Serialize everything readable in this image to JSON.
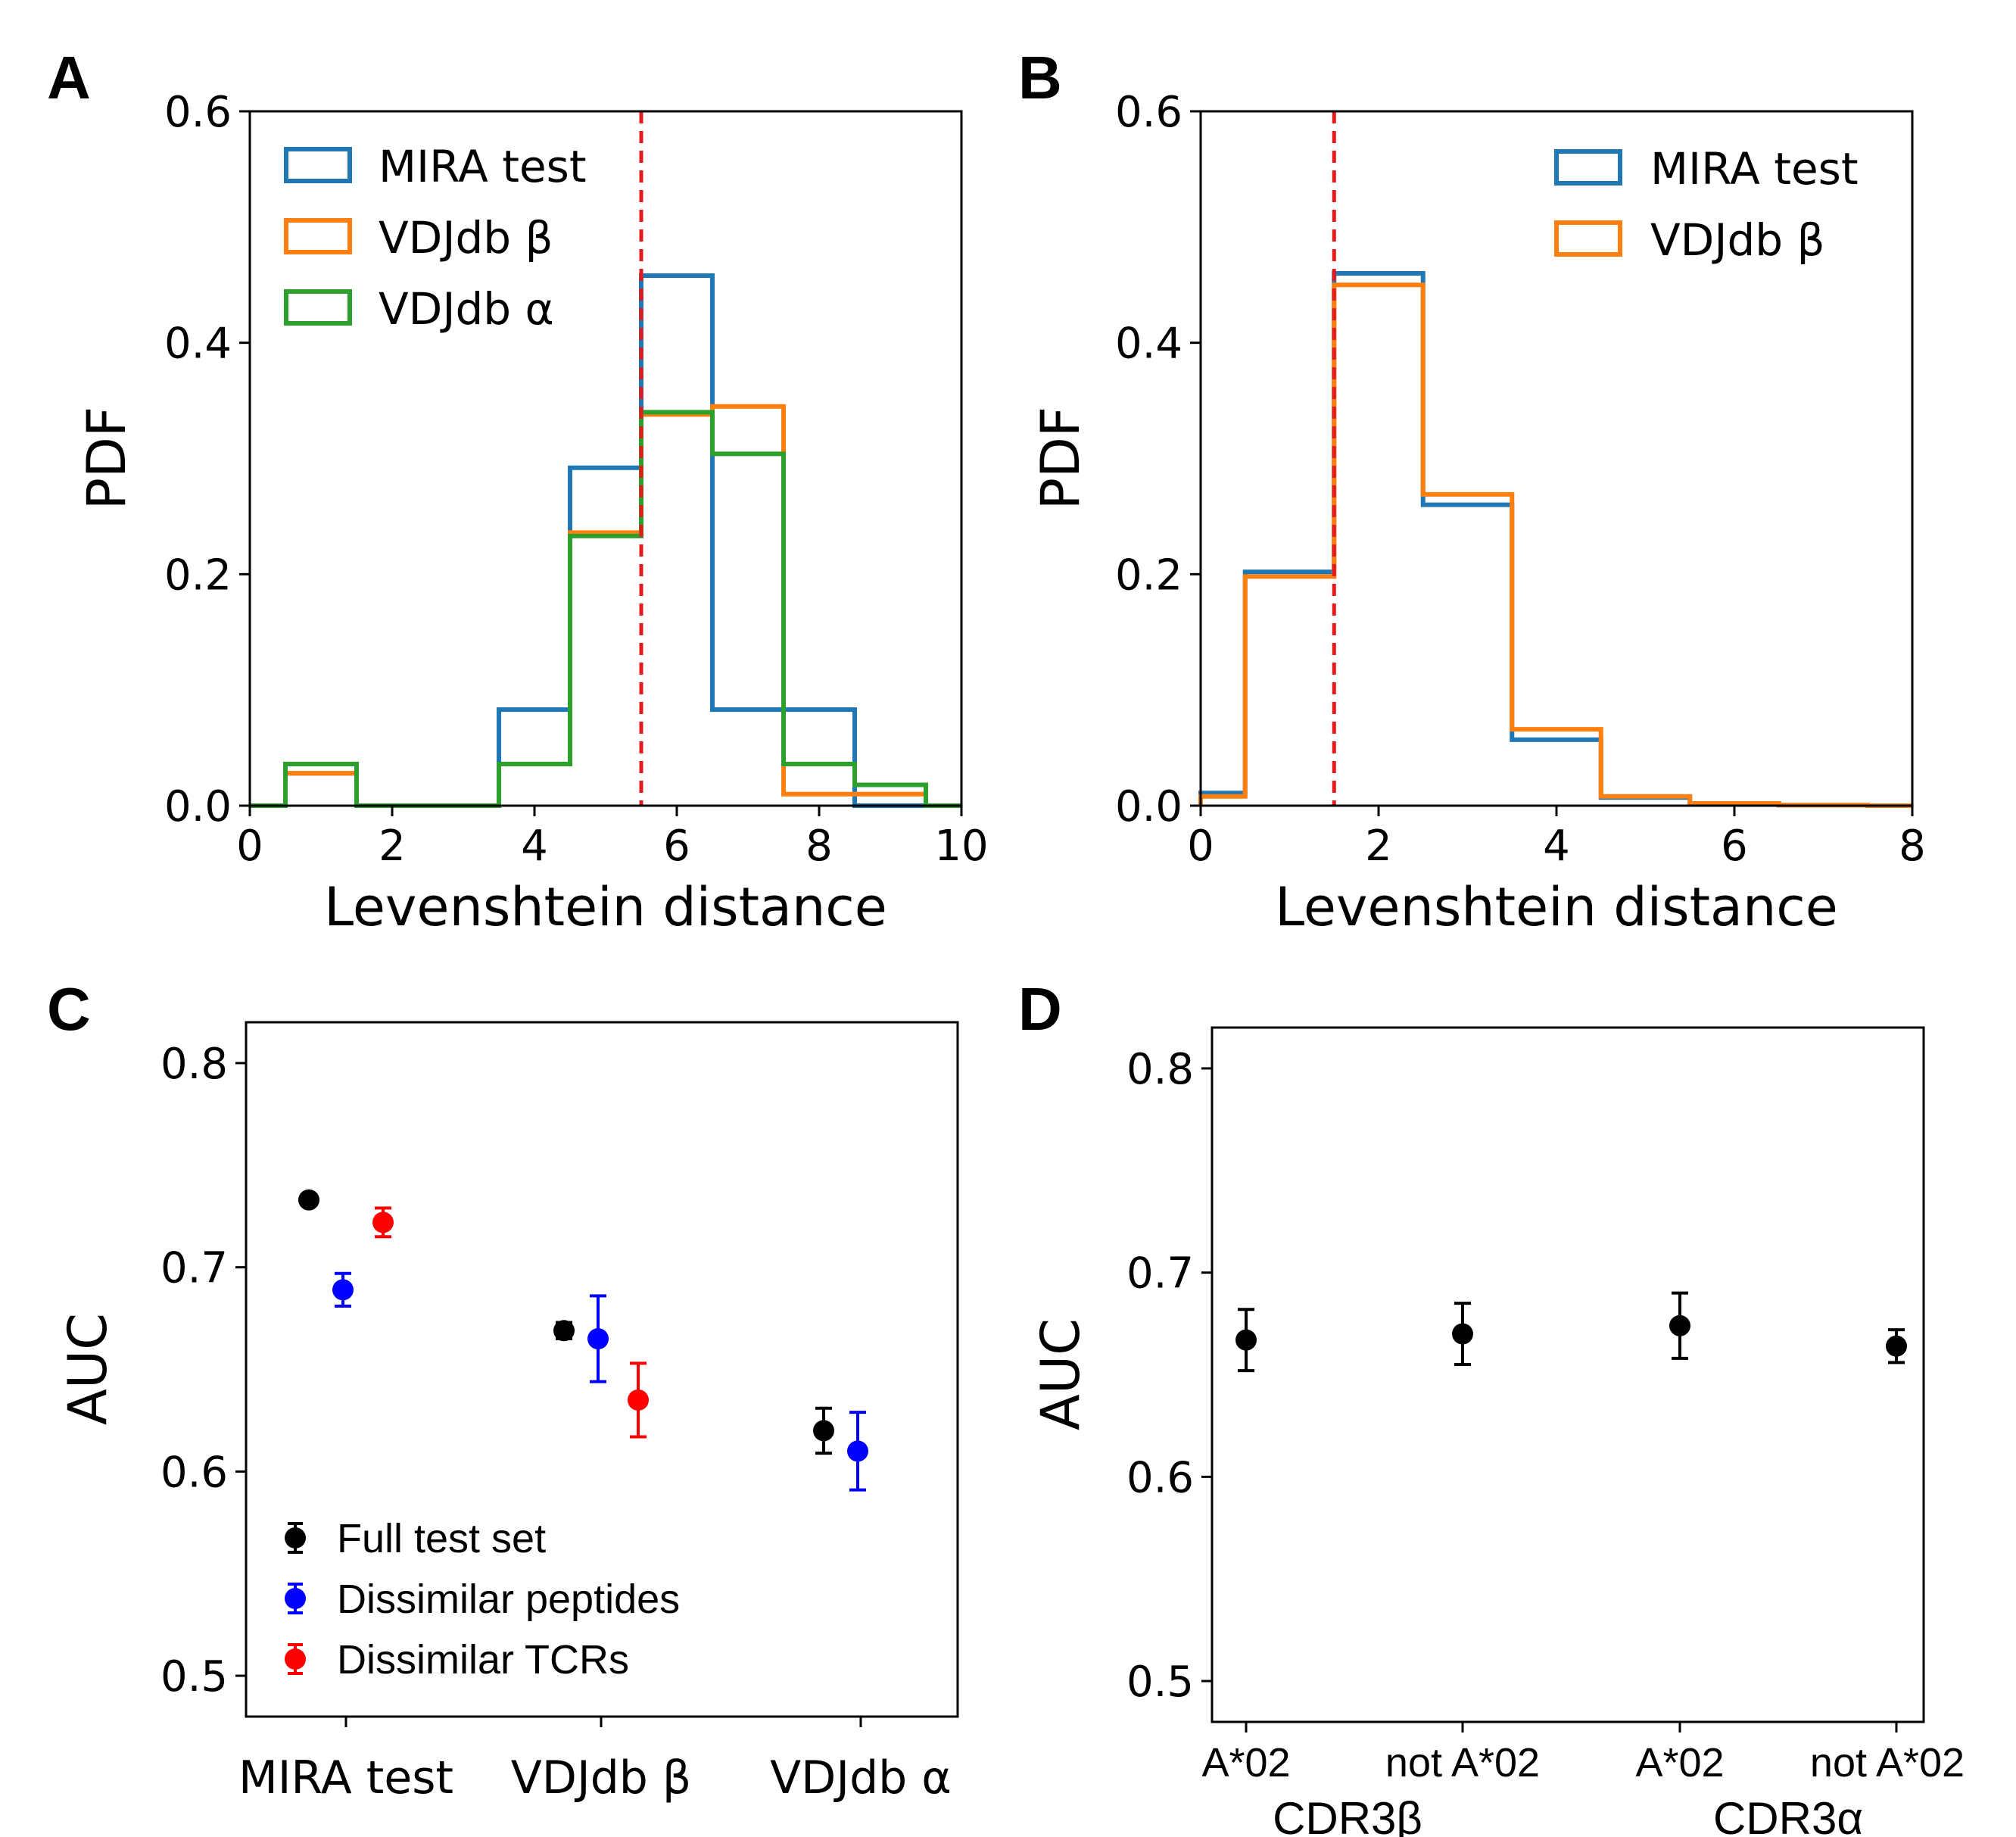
{
  "chart_data": [
    {
      "panel": "A",
      "type": "histogram-step",
      "xlabel": "Levenshtein distance",
      "ylabel": "PDF",
      "xlim": [
        0,
        10
      ],
      "ylim": [
        0,
        0.6
      ],
      "xticks": [
        0,
        2,
        4,
        6,
        8,
        10
      ],
      "xtick_labels": [
        "0",
        "2",
        "4",
        "6",
        "8",
        "10"
      ],
      "yticks": [
        0.0,
        0.2,
        0.4,
        0.6
      ],
      "ytick_labels": [
        "0.0",
        "0.2",
        "0.4",
        "0.6"
      ],
      "threshold": 5.5,
      "threshold_color": "#e41a1c",
      "legend_position": "upper-left",
      "series": [
        {
          "name": "MIRA test",
          "color": "#1f77b4",
          "edges": [
            0,
            0.5,
            1.5,
            2.5,
            3.5,
            4.5,
            5.5,
            6.5,
            7.5,
            8.5,
            9.5,
            10
          ],
          "values": [
            0,
            0.028,
            0,
            0,
            0.083,
            0.292,
            0.458,
            0.083,
            0.083,
            0,
            0
          ]
        },
        {
          "name": "VDJdb β",
          "color": "#ff7f0e",
          "edges": [
            0,
            0.5,
            1.5,
            2.5,
            3.5,
            4.5,
            5.5,
            6.5,
            7.5,
            8.5,
            9.5,
            10
          ],
          "values": [
            0,
            0.028,
            0,
            0,
            0.036,
            0.236,
            0.338,
            0.345,
            0.01,
            0.01,
            0
          ]
        },
        {
          "name": "VDJdb α",
          "color": "#2ca02c",
          "edges": [
            0,
            0.5,
            1.5,
            2.5,
            3.5,
            4.5,
            5.5,
            6.5,
            7.5,
            8.5,
            9.5,
            10
          ],
          "values": [
            0,
            0.036,
            0,
            0,
            0.036,
            0.233,
            0.34,
            0.304,
            0.036,
            0.018,
            0
          ]
        }
      ]
    },
    {
      "panel": "B",
      "type": "histogram-step",
      "xlabel": "Levenshtein distance",
      "ylabel": "PDF",
      "xlim": [
        0,
        8
      ],
      "ylim": [
        0,
        0.6
      ],
      "xticks": [
        0,
        2,
        4,
        6,
        8
      ],
      "xtick_labels": [
        "0",
        "2",
        "4",
        "6",
        "8"
      ],
      "yticks": [
        0.0,
        0.2,
        0.4,
        0.6
      ],
      "ytick_labels": [
        "0.0",
        "0.2",
        "0.4",
        "0.6"
      ],
      "threshold": 1.5,
      "threshold_color": "#e41a1c",
      "legend_position": "upper-right",
      "series": [
        {
          "name": "MIRA test",
          "color": "#1f77b4",
          "edges": [
            0,
            0.5,
            1.5,
            2.5,
            3.5,
            4.5,
            5.5,
            6.5,
            7.5,
            8
          ],
          "values": [
            0.011,
            0.202,
            0.46,
            0.26,
            0.057,
            0.007,
            0.002,
            0.0005,
            0
          ]
        },
        {
          "name": "VDJdb β",
          "color": "#ff7f0e",
          "edges": [
            0,
            0.5,
            1.5,
            2.5,
            3.5,
            4.5,
            5.5,
            6.5,
            7.5,
            8
          ],
          "values": [
            0.008,
            0.198,
            0.45,
            0.269,
            0.066,
            0.008,
            0.002,
            0.0005,
            0
          ]
        }
      ]
    },
    {
      "panel": "C",
      "type": "errorbar",
      "ylabel": "AUC",
      "ylim": [
        0.48,
        0.82
      ],
      "yticks": [
        0.5,
        0.6,
        0.7,
        0.8
      ],
      "ytick_labels": [
        "0.5",
        "0.6",
        "0.7",
        "0.8"
      ],
      "categories": [
        "MIRA test",
        "VDJdb β",
        "VDJdb α"
      ],
      "legend_position": "lower-left",
      "series": [
        {
          "name": "Full test set",
          "color": "#000000",
          "points": [
            {
              "cat": 0,
              "y": 0.733,
              "err": 0.001
            },
            {
              "cat": 1,
              "y": 0.669,
              "err": 0.004
            },
            {
              "cat": 2,
              "y": 0.62,
              "err": 0.011
            }
          ]
        },
        {
          "name": "Dissimilar peptides",
          "color": "#0000ff",
          "points": [
            {
              "cat": 0,
              "y": 0.689,
              "err": 0.008
            },
            {
              "cat": 1,
              "y": 0.665,
              "err": 0.021
            },
            {
              "cat": 2,
              "y": 0.61,
              "err": 0.019
            }
          ]
        },
        {
          "name": "Dissimilar TCRs",
          "color": "#ff0000",
          "points": [
            {
              "cat": 0,
              "y": 0.722,
              "err": 0.007
            },
            {
              "cat": 1,
              "y": 0.635,
              "err": 0.018
            }
          ]
        }
      ]
    },
    {
      "panel": "D",
      "type": "errorbar",
      "ylabel": "AUC",
      "ylim": [
        0.48,
        0.82
      ],
      "yticks": [
        0.5,
        0.6,
        0.7,
        0.8
      ],
      "ytick_labels": [
        "0.5",
        "0.6",
        "0.7",
        "0.8"
      ],
      "categories": [
        "A*02",
        "not A*02",
        "A*02",
        "not A*02"
      ],
      "groups": [
        "CDR3β",
        "CDR3α"
      ],
      "series": [
        {
          "name": "AUC",
          "color": "#000000",
          "points": [
            {
              "cat": 0,
              "y": 0.667,
              "err": 0.015
            },
            {
              "cat": 1,
              "y": 0.67,
              "err": 0.015
            },
            {
              "cat": 2,
              "y": 0.674,
              "err": 0.016
            },
            {
              "cat": 3,
              "y": 0.664,
              "err": 0.008
            }
          ]
        }
      ]
    }
  ]
}
